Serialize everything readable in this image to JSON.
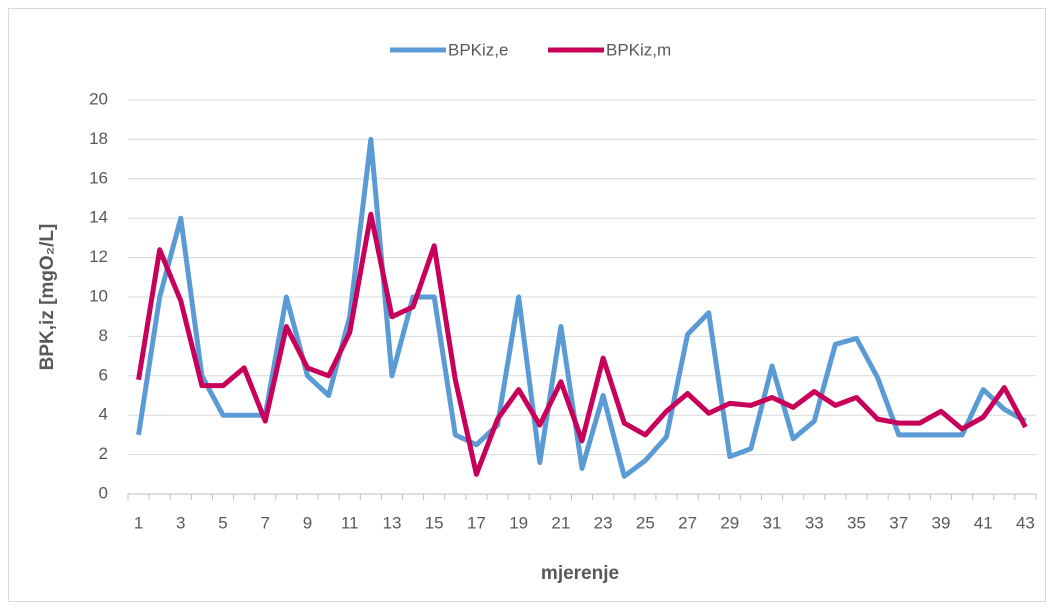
{
  "chart_data": {
    "type": "line",
    "xlabel": "mjerenje",
    "ylabel": "BPK,iz [mgO₂/L]",
    "categories": [
      1,
      null,
      3,
      null,
      5,
      null,
      7,
      null,
      9,
      null,
      11,
      null,
      13,
      null,
      15,
      null,
      17,
      null,
      19,
      null,
      21,
      null,
      23,
      null,
      25,
      null,
      27,
      null,
      29,
      null,
      31,
      null,
      33,
      null,
      35,
      null,
      37,
      null,
      39,
      null,
      41,
      null,
      43
    ],
    "series": [
      {
        "name": "BPKiz,e",
        "color": "#5b9bd5",
        "values": [
          3,
          10,
          14,
          6,
          4,
          4,
          4,
          10,
          6,
          5,
          9,
          18,
          6,
          10,
          10,
          3,
          2.5,
          3.5,
          10,
          1.6,
          8.5,
          1.3,
          5,
          0.9,
          1.7,
          2.9,
          8.1,
          9.2,
          1.9,
          2.3,
          6.5,
          2.8,
          3.7,
          7.6,
          7.9,
          5.9,
          3,
          3,
          3,
          3,
          5.3,
          4.3,
          3.7
        ]
      },
      {
        "name": "BPKiz,m",
        "color": "#c8005a",
        "values": [
          5.8,
          12.4,
          9.8,
          5.5,
          5.5,
          6.4,
          3.7,
          8.5,
          6.4,
          6,
          8.2,
          14.2,
          9,
          9.5,
          12.6,
          5.8,
          1,
          3.8,
          5.3,
          3.5,
          5.7,
          2.7,
          6.9,
          3.6,
          3,
          4.2,
          5.1,
          4.1,
          4.6,
          4.5,
          4.9,
          4.4,
          5.2,
          4.5,
          4.9,
          3.8,
          3.6,
          3.6,
          4.2,
          3.3,
          3.9,
          5.4,
          3.4
        ]
      }
    ],
    "ylim": [
      0,
      20
    ],
    "yticks": [
      0,
      2,
      4,
      6,
      8,
      10,
      12,
      14,
      16,
      18,
      20
    ],
    "grid": true,
    "legend": "top"
  }
}
